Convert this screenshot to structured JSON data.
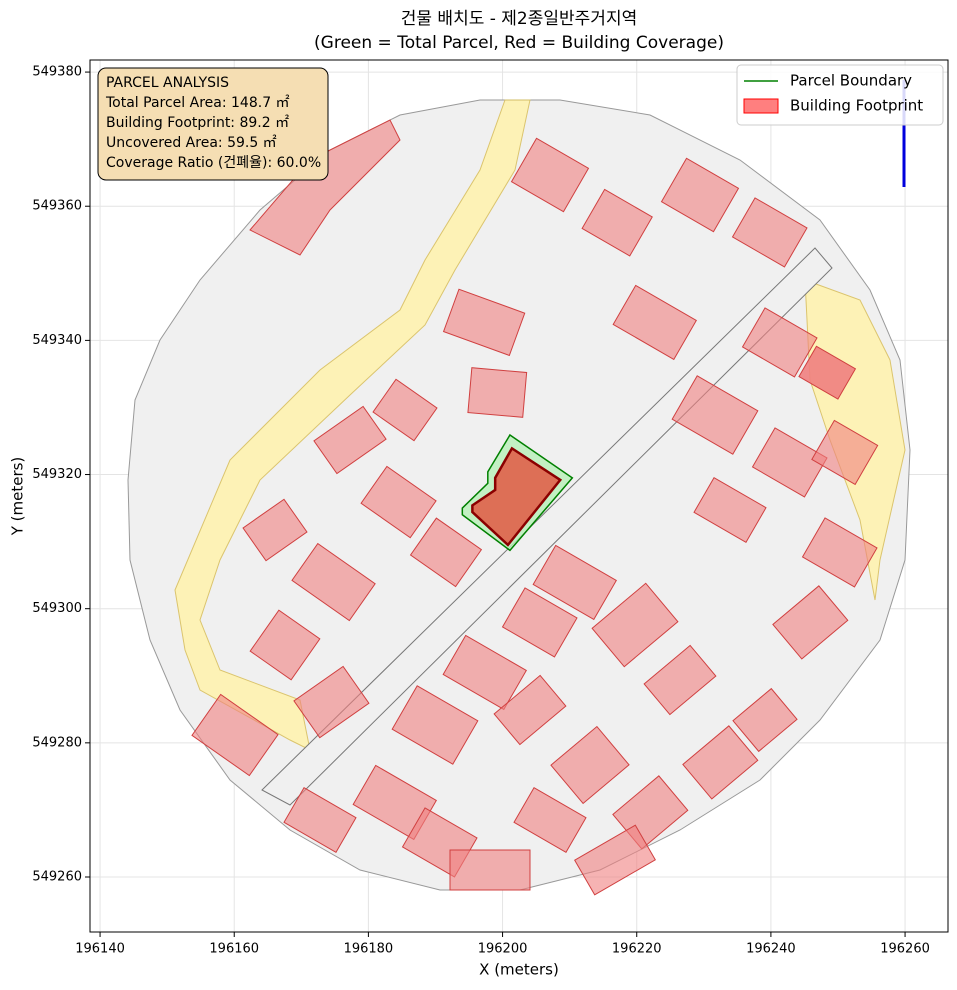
{
  "chart_data": {
    "type": "map",
    "title": "건물 배치도 - 제2종일반주거지역",
    "subtitle": "(Green = Total Parcel, Red = Building Coverage)",
    "x_label": "X (meters)",
    "y_label": "Y (meters)",
    "xlim": [
      196138.5,
      196266.4
    ],
    "ylim": [
      549251.8,
      549381.8
    ],
    "xticks": [
      196140,
      196160,
      196180,
      196200,
      196220,
      196240,
      196260
    ],
    "yticks": [
      549260,
      549280,
      549300,
      549320,
      549340,
      549360,
      549380
    ],
    "grid": true,
    "legend": "upper right",
    "annotation": [
      "PARCEL ANALYSIS",
      "Total Parcel Area: 148.7 ㎡",
      "Building Footprint: 89.2 ㎡",
      "Uncovered Area: 59.5 ㎡",
      "Coverage Ratio (건폐율): 60.0%"
    ],
    "series": [
      {
        "name": "Parcel Boundary",
        "color": "#008000",
        "x": [
          196201.1,
          196210.4,
          196201.1,
          196194.0,
          196194.0,
          196197.8,
          196197.8
        ],
        "y": [
          549325.9,
          549319.5,
          549308.7,
          549314.0,
          549315.0,
          549318.7,
          549320.4
        ]
      },
      {
        "name": "Building Footprint",
        "color": "#ff0000",
        "x": [
          196201.4,
          196208.6,
          196200.8,
          196195.5,
          196195.5,
          196198.9,
          196198.9
        ],
        "y": [
          549323.9,
          549319.2,
          549309.5,
          549314.4,
          549315.4,
          549317.7,
          549319.5
        ]
      }
    ]
  }
}
